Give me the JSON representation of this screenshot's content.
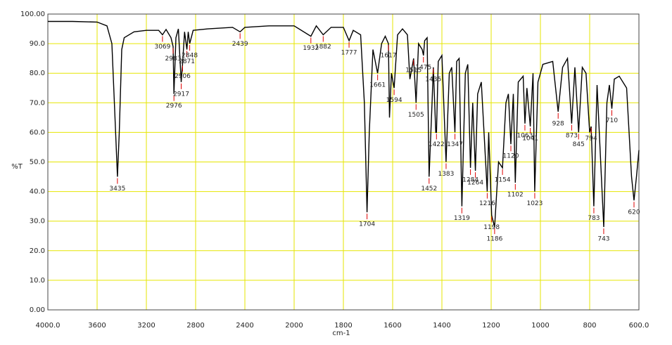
{
  "chart_data": {
    "type": "line",
    "color": "#000000",
    "grid_color": "#e6e600",
    "peak_color": "#dd0000",
    "y_label": "%T",
    "x_label": "cm-1",
    "xlim": [
      4000,
      600
    ],
    "x_expand_below": 2000,
    "x_expand_factor": 2,
    "ylim": [
      0,
      100
    ],
    "xticks": [
      {
        "value": 4000,
        "label": "4000.0"
      },
      3600,
      3200,
      2800,
      2400,
      2000,
      1800,
      1600,
      1400,
      1200,
      1000,
      800,
      {
        "value": 600,
        "label": "600.0"
      }
    ],
    "yticks": [
      {
        "value": 0,
        "label": "0.00"
      },
      {
        "value": 10,
        "label": "10.0"
      },
      {
        "value": 20,
        "label": "20.0"
      },
      {
        "value": 30,
        "label": "30.0"
      },
      {
        "value": 40,
        "label": "40.0"
      },
      {
        "value": 50,
        "label": "50.0"
      },
      {
        "value": 60,
        "label": "60.0"
      },
      {
        "value": 70,
        "label": "70.0"
      },
      {
        "value": 80,
        "label": "80.0"
      },
      {
        "value": 90,
        "label": "90.0"
      },
      {
        "value": 100,
        "label": "100.00"
      }
    ],
    "x": [
      4000,
      3800,
      3600,
      3520,
      3480,
      3450,
      3435,
      3420,
      3400,
      3380,
      3300,
      3200,
      3100,
      3069,
      3040,
      3000,
      2983,
      2976,
      2960,
      2940,
      2917,
      2906,
      2890,
      2871,
      2860,
      2848,
      2820,
      2700,
      2500,
      2439,
      2400,
      2200,
      2000,
      1932,
      1910,
      1882,
      1850,
      1800,
      1777,
      1760,
      1730,
      1715,
      1704,
      1695,
      1680,
      1661,
      1645,
      1630,
      1617,
      1613,
      1605,
      1594,
      1580,
      1560,
      1540,
      1530,
      1515,
      1505,
      1495,
      1480,
      1475,
      1470,
      1460,
      1452,
      1440,
      1435,
      1425,
      1422,
      1415,
      1400,
      1383,
      1370,
      1360,
      1347,
      1340,
      1330,
      1319,
      1305,
      1295,
      1284,
      1275,
      1264,
      1255,
      1240,
      1216,
      1210,
      1198,
      1186,
      1170,
      1154,
      1140,
      1130,
      1120,
      1110,
      1102,
      1090,
      1070,
      1063,
      1055,
      1041,
      1030,
      1023,
      1010,
      990,
      950,
      928,
      910,
      890,
      873,
      860,
      845,
      830,
      815,
      800,
      794,
      783,
      770,
      743,
      730,
      720,
      710,
      700,
      680,
      650,
      630,
      620,
      610,
      600
    ],
    "values": [
      97.5,
      97.5,
      97.3,
      96,
      90,
      60,
      45,
      60,
      88,
      92,
      94,
      94.5,
      94.5,
      93,
      94.8,
      92,
      89,
      73,
      92,
      95,
      77,
      83,
      94,
      88,
      94,
      90,
      94.5,
      95,
      95.5,
      94,
      95.5,
      96,
      96,
      92.5,
      96,
      93,
      95.5,
      95.5,
      91,
      94.5,
      93,
      70,
      33,
      60,
      88,
      80,
      90,
      92.5,
      90,
      65,
      80,
      75,
      93,
      95,
      93,
      78,
      85,
      70,
      90,
      88,
      86,
      91,
      92,
      45,
      70,
      82,
      60,
      60,
      84,
      86,
      50,
      80,
      82,
      60,
      84,
      85,
      35,
      80,
      83,
      48,
      70,
      47,
      73,
      77,
      40,
      60,
      32,
      28,
      50,
      48,
      70,
      73,
      56,
      73,
      43,
      77,
      79,
      63,
      75,
      62,
      80,
      40,
      77,
      83,
      84,
      67,
      82,
      85,
      63,
      82,
      60,
      82,
      80,
      60,
      62,
      35,
      76,
      28,
      70,
      76,
      68,
      78,
      79,
      75,
      45,
      37,
      45,
      54
    ],
    "peaks": [
      3435,
      3069,
      2983,
      2976,
      2917,
      2906,
      2871,
      2848,
      2439,
      1932,
      1882,
      1777,
      1704,
      1661,
      1617,
      1594,
      1515,
      1505,
      1475,
      1452,
      1435,
      1422,
      1383,
      1347,
      1319,
      1284,
      1264,
      1216,
      1198,
      1186,
      1154,
      1120,
      1102,
      1063,
      1041,
      1023,
      928,
      873,
      845,
      794,
      783,
      743,
      710,
      620
    ]
  }
}
